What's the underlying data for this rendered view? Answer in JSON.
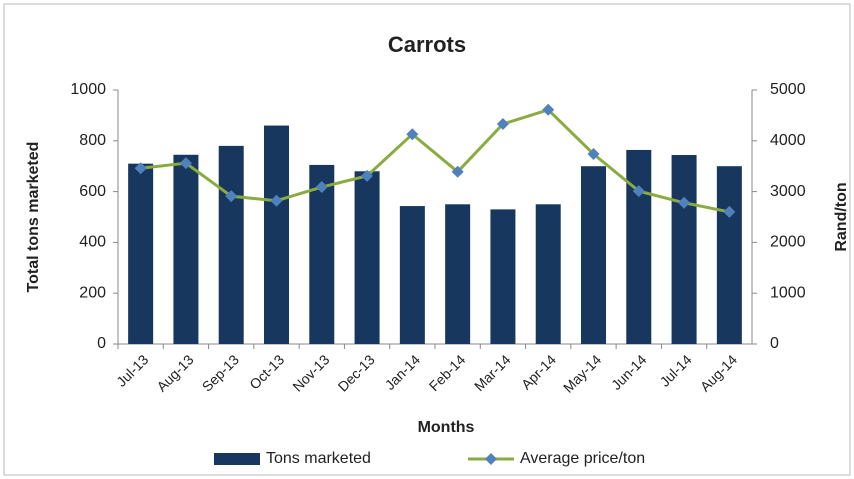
{
  "chart_data": {
    "type": "bar-line",
    "title": "Carrots",
    "x_label": "Months",
    "y_label": "Total tons marketed",
    "y2_label": "Rand/ton",
    "categories": [
      "Jul-13",
      "Aug-13",
      "Sep-13",
      "Oct-13",
      "Nov-13",
      "Dec-13",
      "Jan-14",
      "Feb-14",
      "Mar-14",
      "Apr-14",
      "May-14",
      "Jun-14",
      "Jul-14",
      "Aug-14"
    ],
    "series": [
      {
        "name": "Tons marketed",
        "type": "bar",
        "color": "#17375e",
        "axis": "y",
        "values": [
          710,
          745,
          780,
          860,
          705,
          680,
          543,
          550,
          530,
          550,
          700,
          764,
          744,
          700
        ]
      },
      {
        "name": "Average price/ton",
        "type": "line",
        "color": "#8aab3f",
        "marker_color": "#4f81bd",
        "axis": "y2",
        "values": [
          3460,
          3560,
          2910,
          2820,
          3090,
          3310,
          4130,
          3390,
          4330,
          4610,
          3740,
          3010,
          2780,
          2600
        ]
      }
    ],
    "ylim": [
      0,
      1000
    ],
    "yticks": [
      0,
      200,
      400,
      600,
      800,
      1000
    ],
    "y2lim": [
      0,
      5000
    ],
    "y2ticks": [
      0,
      1000,
      2000,
      3000,
      4000,
      5000
    ],
    "grid": false,
    "legend": "bottom"
  }
}
